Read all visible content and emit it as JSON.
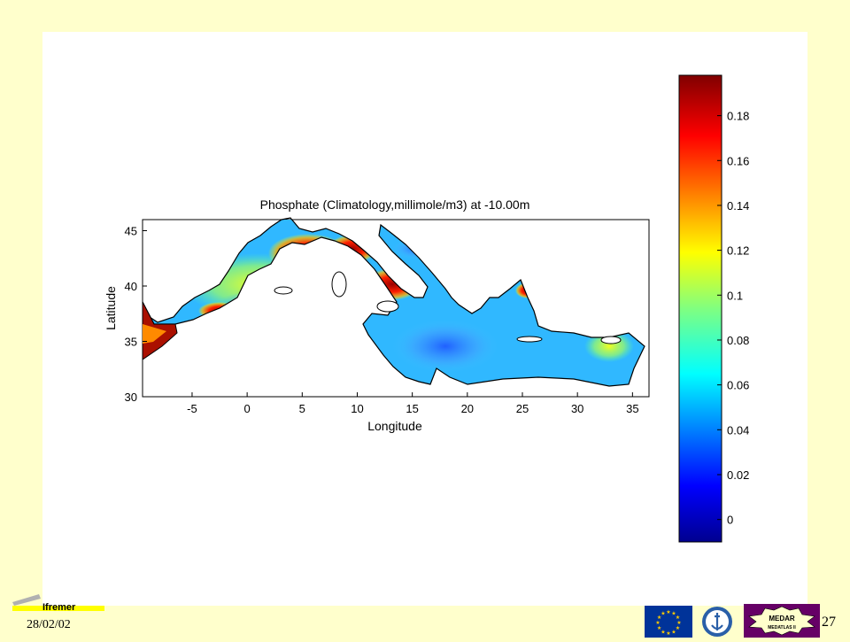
{
  "map": {
    "title": "Phosphate (Climatology,millimole/m3) at -10.00m",
    "xlabel": "Longitude",
    "ylabel": "Latitude",
    "x_ticks": [
      "-5",
      "0",
      "5",
      "10",
      "15",
      "20",
      "25",
      "30",
      "35"
    ],
    "y_ticks": [
      "45",
      "40",
      "35",
      "30"
    ],
    "xlim": [
      -9.5,
      36.5
    ],
    "ylim": [
      30,
      46
    ]
  },
  "colorbar": {
    "ticks": [
      "0.18",
      "0.16",
      "0.14",
      "0.12",
      "0.1",
      "0.08",
      "0.06",
      "0.04",
      "0.02",
      "0"
    ],
    "range": [
      -0.01,
      0.198
    ],
    "colormap": "jet"
  },
  "footer": {
    "date": "28/02/02",
    "page_number": "27",
    "logo_text": "Ifremer",
    "medar_top": "MEDAR",
    "medar_bottom": "MEDATLAS II"
  },
  "colors": {
    "background": "#ffffcc",
    "panel": "#ffffff",
    "land": "#ffffff",
    "ifremer_yellow": "#ffff00",
    "eu_blue": "#003399",
    "eu_star": "#ffcc00",
    "medar_purple": "#660066"
  }
}
